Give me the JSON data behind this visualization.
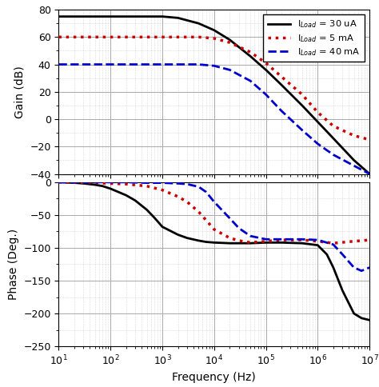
{
  "freq_range": [
    10,
    10000000.0
  ],
  "gain_ylim": [
    -40,
    80
  ],
  "gain_yticks": [
    -40,
    -20,
    0,
    20,
    40,
    60,
    80
  ],
  "phase_ylim": [
    -250,
    0
  ],
  "phase_yticks": [
    -250,
    -200,
    -150,
    -100,
    -50,
    0
  ],
  "xlabel": "Frequency (Hz)",
  "ylabel_gain": "Gain (dB)",
  "ylabel_phase": "Phase (Deg.)",
  "legend": [
    {
      "label": "I$_{Load}$ = 30 uA",
      "color": "#000000",
      "ls": "-",
      "lw": 2.0
    },
    {
      "label": "I$_{Load}$ = 5 mA",
      "color": "#cc0000",
      "ls": ":",
      "lw": 2.5
    },
    {
      "label": "I$_{Load}$ = 40 mA",
      "color": "#0000cc",
      "ls": "--",
      "lw": 2.0
    }
  ],
  "curve1_gain_x": [
    10,
    20,
    30,
    50,
    70,
    100,
    200,
    500,
    1000,
    2000,
    5000,
    10000,
    20000,
    50000,
    100000,
    200000,
    500000,
    1000000,
    2000000,
    5000000,
    10000000
  ],
  "curve1_gain_y": [
    75,
    75,
    75,
    75,
    75,
    75,
    75,
    75,
    75,
    74,
    70,
    65,
    58,
    46,
    36,
    25,
    10,
    -2,
    -14,
    -30,
    -40
  ],
  "curve2_gain_x": [
    10,
    20,
    50,
    100,
    200,
    500,
    1000,
    2000,
    5000,
    10000,
    20000,
    50000,
    100000,
    200000,
    500000,
    1000000,
    2000000,
    5000000,
    10000000
  ],
  "curve2_gain_y": [
    60,
    60,
    60,
    60,
    60,
    60,
    60,
    60,
    60,
    59,
    56,
    49,
    41,
    31,
    18,
    5,
    -5,
    -12,
    -15
  ],
  "curve3_gain_x": [
    10,
    20,
    50,
    100,
    200,
    500,
    1000,
    2000,
    5000,
    10000,
    20000,
    50000,
    100000,
    200000,
    500000,
    1000000,
    2000000,
    5000000,
    10000000
  ],
  "curve3_gain_y": [
    40,
    40,
    40,
    40,
    40,
    40,
    40,
    40,
    40,
    39,
    36,
    28,
    18,
    6,
    -8,
    -18,
    -26,
    -34,
    -40
  ],
  "curve1_phase_x": [
    10,
    20,
    30,
    50,
    70,
    100,
    200,
    300,
    500,
    700,
    1000,
    2000,
    3000,
    5000,
    7000,
    10000,
    20000,
    50000,
    100000,
    200000,
    500000,
    1000000,
    1500000,
    2000000,
    3000000,
    5000000,
    7000000,
    10000000
  ],
  "curve1_phase_y": [
    0,
    -1,
    -2,
    -4,
    -6,
    -10,
    -20,
    -28,
    -42,
    -54,
    -68,
    -80,
    -85,
    -89,
    -91,
    -92,
    -93,
    -93,
    -92,
    -92,
    -93,
    -96,
    -110,
    -130,
    -165,
    -200,
    -207,
    -210
  ],
  "curve2_phase_x": [
    10,
    50,
    100,
    200,
    500,
    1000,
    2000,
    3000,
    5000,
    7000,
    10000,
    20000,
    30000,
    50000,
    100000,
    200000,
    500000,
    1000000,
    2000000,
    5000000,
    10000000
  ],
  "curve2_phase_y": [
    0,
    -1,
    -2,
    -3,
    -6,
    -12,
    -22,
    -30,
    -45,
    -58,
    -72,
    -85,
    -89,
    -92,
    -90,
    -88,
    -88,
    -90,
    -93,
    -90,
    -88
  ],
  "curve3_phase_x": [
    10,
    50,
    100,
    200,
    500,
    1000,
    2000,
    3000,
    5000,
    7000,
    10000,
    20000,
    30000,
    50000,
    100000,
    200000,
    500000,
    1000000,
    2000000,
    3000000,
    5000000,
    7000000,
    10000000
  ],
  "curve3_phase_y": [
    0,
    0,
    0,
    0,
    -1,
    -1,
    -2,
    -3,
    -7,
    -15,
    -30,
    -55,
    -70,
    -82,
    -87,
    -87,
    -87,
    -88,
    -95,
    -110,
    -130,
    -135,
    -130
  ],
  "bg_color": "#ffffff",
  "major_grid_color": "#aaaaaa",
  "minor_grid_color": "#bbbbbb"
}
